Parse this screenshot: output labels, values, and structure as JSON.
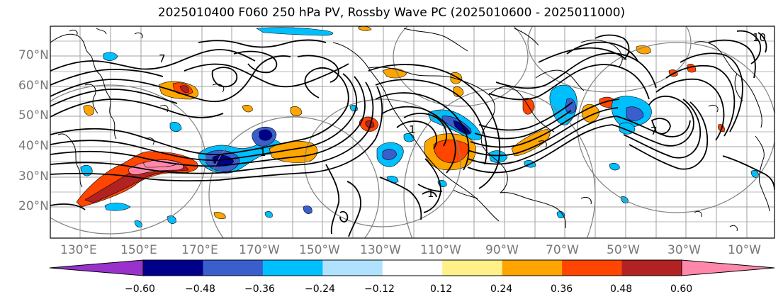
{
  "title": "2025010400 F060 250 hPa PV, Rossby Wave PC (2025010600 - 2025011000)",
  "lat_labels": [
    "70°N",
    "60°N",
    "50°N",
    "40°N",
    "30°N",
    "20°N"
  ],
  "lon_labels": [
    "130°E",
    "150°E",
    "170°E",
    "170°W",
    "150°W",
    "130°W",
    "110°W",
    "90°W",
    "70°W",
    "50°W",
    "30°W",
    "10°W"
  ],
  "contour_labels": [
    "7",
    "7",
    "1",
    "1",
    "1",
    "10"
  ],
  "colorbar": {
    "tick_labels": [
      "−0.60",
      "−0.48",
      "−0.36",
      "−0.24",
      "−0.12",
      "0.12",
      "0.24",
      "0.36",
      "0.48",
      "0.60"
    ],
    "colors": [
      "#9932cc",
      "#00008b",
      "#3a5fcd",
      "#00bfff",
      "#b0e2ff",
      "#ffffff",
      "#fff08a",
      "#ffa500",
      "#ff4500",
      "#b22222",
      "#ff88aa"
    ]
  },
  "colors": {
    "contour": "#000000",
    "grid": "#a0a0a0",
    "coast": "#000000",
    "circle": "#808080"
  }
}
